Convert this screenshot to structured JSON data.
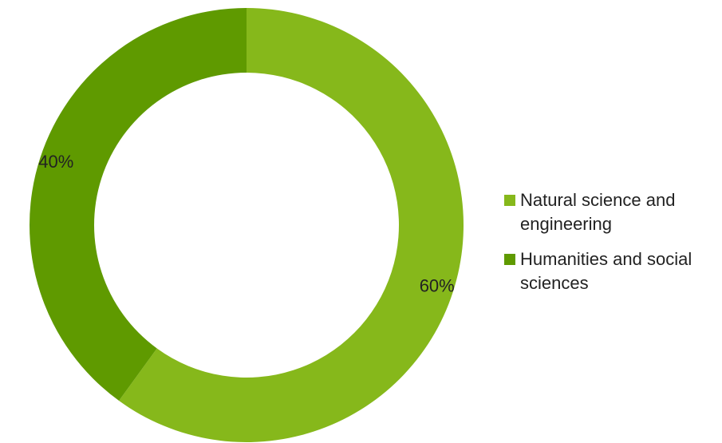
{
  "chart_data": {
    "type": "pie",
    "donut": true,
    "title": "",
    "slices": [
      {
        "label": "Natural science and engineering",
        "value": 60,
        "display": "60%",
        "color": "#86b81b"
      },
      {
        "label": "Humanities and social sciences",
        "value": 40,
        "display": "40%",
        "color": "#5f9a00"
      }
    ],
    "legend": {
      "placement": "right",
      "items": [
        {
          "label": "Natural science and engineering",
          "color": "#86b81b"
        },
        {
          "label": "Humanities and social sciences",
          "color": "#5f9a00"
        }
      ]
    }
  }
}
